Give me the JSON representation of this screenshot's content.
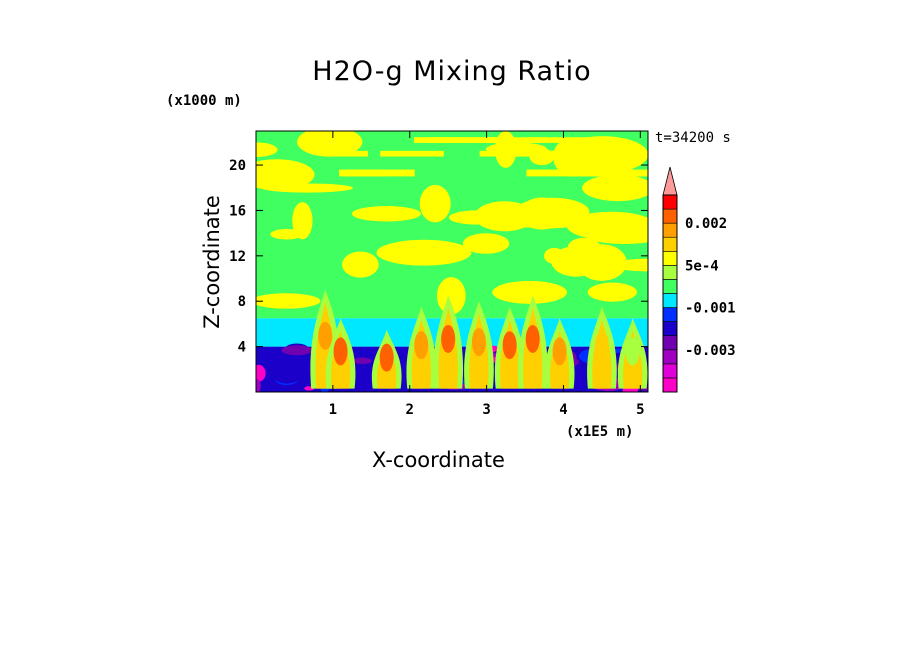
{
  "chart_data": {
    "type": "heatmap",
    "title": "H2O-g Mixing Ratio",
    "xlabel": "X-coordinate",
    "ylabel": "Z-coordinate",
    "x_unit_label": "(x1E5 m)",
    "y_unit_label": "(x1000 m)",
    "time_label": "t=34200 s",
    "xlim": [
      0,
      5.1
    ],
    "ylim": [
      0,
      23
    ],
    "x_ticks": [
      1,
      2,
      3,
      4,
      5
    ],
    "y_ticks": [
      4,
      8,
      12,
      16,
      20
    ],
    "colorbar": {
      "colors": [
        "#ff00c8",
        "#e000d8",
        "#a000c0",
        "#7000b0",
        "#1a00c8",
        "#0030ff",
        "#00e8ff",
        "#40ff60",
        "#a8ff40",
        "#ffff00",
        "#ffd000",
        "#ffa000",
        "#ff6000",
        "#ff0000",
        "#ff9a9a"
      ],
      "labels": [
        "0.002",
        "5e-4",
        "-0.001",
        "-0.003"
      ],
      "extend_top": true
    },
    "bands": [
      {
        "z_range": [
          0,
          4
        ],
        "dominant_color": "#1a00c8",
        "note": "blue / purple with magenta patches"
      },
      {
        "z_range": [
          4,
          6.5
        ],
        "dominant_color": "#00e8ff"
      },
      {
        "z_range": [
          6.5,
          23
        ],
        "dominant_color": "#40ff60",
        "note": "green with yellow patches"
      }
    ],
    "plumes": [
      {
        "x": 0.9,
        "z_top": 9.0,
        "core_color": "#ffa000"
      },
      {
        "x": 1.1,
        "z_top": 6.5,
        "core_color": "#ff6000"
      },
      {
        "x": 1.7,
        "z_top": 5.5,
        "core_color": "#ff6000"
      },
      {
        "x": 2.15,
        "z_top": 7.5,
        "core_color": "#ffa000"
      },
      {
        "x": 2.5,
        "z_top": 8.5,
        "core_color": "#ff6000"
      },
      {
        "x": 2.9,
        "z_top": 8.0,
        "core_color": "#ffa000"
      },
      {
        "x": 3.3,
        "z_top": 7.5,
        "core_color": "#ff6000"
      },
      {
        "x": 3.6,
        "z_top": 8.5,
        "core_color": "#ff6000"
      },
      {
        "x": 3.95,
        "z_top": 6.5,
        "core_color": "#ffa000"
      },
      {
        "x": 4.5,
        "z_top": 7.5,
        "core_color": "#ffd000"
      },
      {
        "x": 4.9,
        "z_top": 6.5,
        "core_color": "#a8ff40"
      }
    ]
  }
}
